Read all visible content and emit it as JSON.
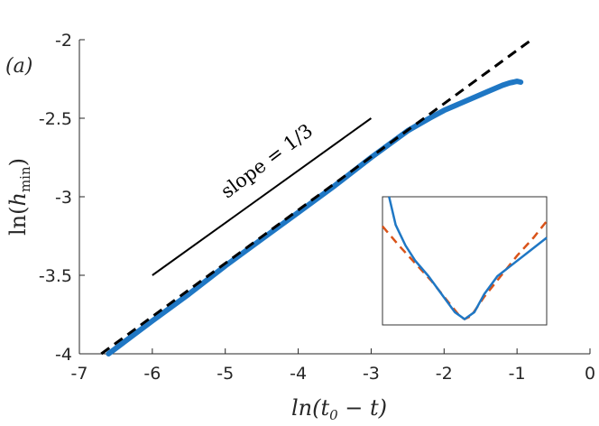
{
  "chart_data": {
    "type": "line",
    "panel_label": "(a)",
    "xlabel": "ln(t₀ − t)",
    "ylabel": "ln(h_min)",
    "xlim": [
      -7,
      0
    ],
    "ylim": [
      -4,
      -2
    ],
    "x_ticks": [
      "-7",
      "-6",
      "-5",
      "-4",
      "-3",
      "-2",
      "-1",
      "0"
    ],
    "y_ticks": [
      "-2",
      "-2.5",
      "-3",
      "-3.5",
      "-4"
    ],
    "grid": false,
    "series": [
      {
        "style": "data",
        "color": "#1f77c4",
        "x": [
          -6.6,
          -6.4,
          -6.0,
          -5.5,
          -5.0,
          -4.5,
          -4.0,
          -3.5,
          -3.0,
          -2.5,
          -2.2,
          -2.0,
          -1.8,
          -1.6,
          -1.4,
          -1.2,
          -1.1,
          -1.05,
          -1.0,
          -0.95
        ],
        "y": [
          -4.0,
          -3.93,
          -3.79,
          -3.62,
          -3.44,
          -3.27,
          -3.1,
          -2.93,
          -2.75,
          -2.58,
          -2.5,
          -2.45,
          -2.41,
          -2.37,
          -2.33,
          -2.29,
          -2.275,
          -2.27,
          -2.265,
          -2.27
        ]
      },
      {
        "style": "fit",
        "color": "#000000",
        "dashed": true,
        "x": [
          -6.7,
          -0.8
        ],
        "y": [
          -4.0,
          -2.0
        ]
      }
    ],
    "annotation": {
      "text": "slope = 1/3",
      "line": {
        "x": [
          -6.0,
          -3.0
        ],
        "y": [
          -3.5,
          -2.5
        ]
      }
    },
    "inset": {
      "series": [
        {
          "color": "#1f77c4",
          "dashed": false
        },
        {
          "color": "#d95319",
          "dashed": true
        }
      ]
    }
  }
}
